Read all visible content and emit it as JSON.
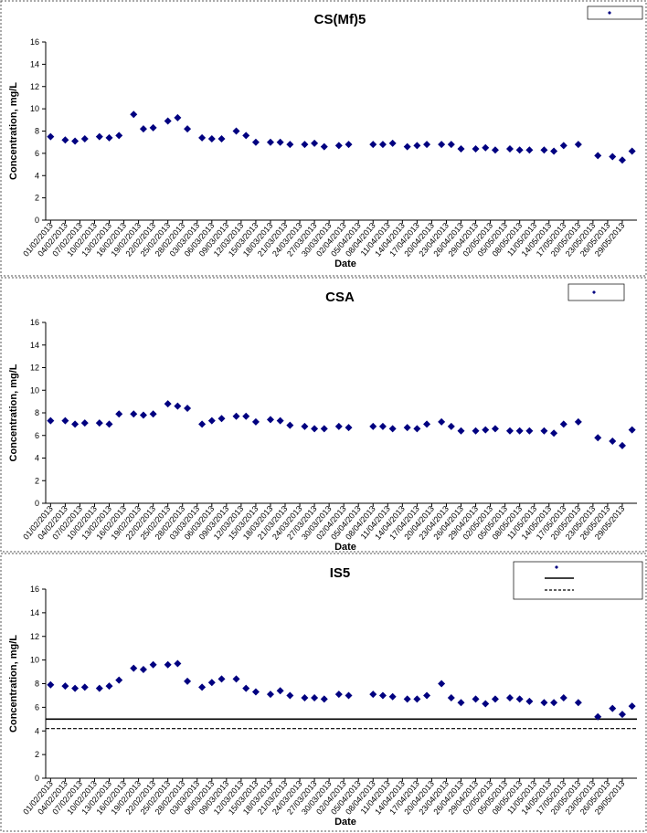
{
  "chart_data": [
    {
      "type": "scatter",
      "title": "CS(Mf)5",
      "x_label": "Date",
      "y_label": "Concentration, mg/L",
      "color": "#000080",
      "x": [
        "01/02/2013",
        "04/02/2013",
        "06/02/2013",
        "08/02/2013",
        "11/02/2013",
        "13/02/2013",
        "15/02/2013",
        "18/02/2013",
        "20/02/2013",
        "22/02/2013",
        "25/02/2013",
        "27/02/2013",
        "01/03/2013",
        "04/03/2013",
        "06/03/2013",
        "08/03/2013",
        "11/03/2013",
        "13/03/2013",
        "15/03/2013",
        "18/03/2013",
        "20/03/2013",
        "22/03/2013",
        "25/03/2013",
        "27/03/2013",
        "29/03/2013",
        "01/04/2013",
        "03/04/2013",
        "08/04/2013",
        "10/04/2013",
        "12/04/2013",
        "15/04/2013",
        "17/04/2013",
        "19/04/2013",
        "22/04/2013",
        "24/04/2013",
        "26/04/2013",
        "29/04/2013",
        "01/05/2013",
        "03/05/2013",
        "06/05/2013",
        "08/05/2013",
        "10/05/2013",
        "13/05/2013",
        "15/05/2013",
        "17/05/2013",
        "20/05/2013",
        "24/05/2013",
        "27/05/2013",
        "29/05/2013",
        "31/05/2013"
      ],
      "values": [
        7.5,
        7.2,
        7.1,
        7.3,
        7.5,
        7.4,
        7.6,
        9.5,
        8.2,
        8.3,
        8.9,
        9.2,
        8.2,
        7.4,
        7.3,
        7.3,
        8.0,
        7.6,
        7.0,
        7.0,
        7.0,
        6.8,
        6.8,
        6.9,
        6.6,
        6.7,
        6.8,
        6.8,
        6.8,
        6.9,
        6.6,
        6.7,
        6.8,
        6.8,
        6.8,
        6.4,
        6.4,
        6.5,
        6.3,
        6.4,
        6.3,
        6.3,
        6.3,
        6.2,
        6.7,
        6.8,
        5.8,
        5.7,
        5.4,
        6.2
      ],
      "xlim": [
        "31/01/2013",
        "01/06/2013"
      ],
      "xticks": [
        "01/02/2013",
        "04/02/2013",
        "07/02/2013",
        "10/02/2013",
        "13/02/2013",
        "16/02/2013",
        "19/02/2013",
        "22/02/2013",
        "25/02/2013",
        "28/02/2013",
        "03/03/2013",
        "06/03/2013",
        "09/03/2013",
        "12/03/2013",
        "15/03/2013",
        "18/03/2013",
        "21/03/2013",
        "24/03/2013",
        "27/03/2013",
        "30/03/2013",
        "02/04/2013",
        "05/04/2013",
        "08/04/2013",
        "11/04/2013",
        "14/04/2013",
        "17/04/2013",
        "20/04/2013",
        "23/04/2013",
        "26/04/2013",
        "29/04/2013",
        "02/05/2013",
        "05/05/2013",
        "08/05/2013",
        "11/05/2013",
        "14/05/2013",
        "17/05/2013",
        "20/05/2013",
        "23/05/2013",
        "26/05/2013",
        "29/05/2013"
      ],
      "ylim": [
        0,
        16
      ],
      "yticks": [
        0,
        2,
        4,
        6,
        8,
        10,
        12,
        14,
        16
      ]
    },
    {
      "type": "scatter",
      "title": "CSA",
      "x_label": "Date",
      "y_label": "Concentration, mg/L",
      "color": "#000080",
      "x": [
        "01/02/2013",
        "04/02/2013",
        "06/02/2013",
        "08/02/2013",
        "11/02/2013",
        "13/02/2013",
        "15/02/2013",
        "18/02/2013",
        "20/02/2013",
        "22/02/2013",
        "25/02/2013",
        "27/02/2013",
        "01/03/2013",
        "04/03/2013",
        "06/03/2013",
        "08/03/2013",
        "11/03/2013",
        "13/03/2013",
        "15/03/2013",
        "18/03/2013",
        "20/03/2013",
        "22/03/2013",
        "25/03/2013",
        "27/03/2013",
        "29/03/2013",
        "01/04/2013",
        "03/04/2013",
        "08/04/2013",
        "10/04/2013",
        "12/04/2013",
        "15/04/2013",
        "17/04/2013",
        "19/04/2013",
        "22/04/2013",
        "24/04/2013",
        "26/04/2013",
        "29/04/2013",
        "01/05/2013",
        "03/05/2013",
        "06/05/2013",
        "08/05/2013",
        "10/05/2013",
        "13/05/2013",
        "15/05/2013",
        "17/05/2013",
        "20/05/2013",
        "24/05/2013",
        "27/05/2013",
        "29/05/2013",
        "31/05/2013"
      ],
      "values": [
        7.3,
        7.3,
        7.0,
        7.1,
        7.1,
        7.0,
        7.9,
        7.9,
        7.8,
        7.9,
        8.8,
        8.6,
        8.4,
        7.0,
        7.3,
        7.5,
        7.7,
        7.7,
        7.2,
        7.4,
        7.3,
        6.9,
        6.8,
        6.6,
        6.6,
        6.8,
        6.7,
        6.8,
        6.8,
        6.6,
        6.7,
        6.6,
        7.0,
        7.2,
        6.8,
        6.4,
        6.4,
        6.5,
        6.6,
        6.4,
        6.4,
        6.4,
        6.4,
        6.2,
        7.0,
        7.2,
        5.8,
        5.5,
        5.1,
        6.5
      ],
      "xlim": [
        "31/01/2013",
        "01/06/2013"
      ],
      "xticks": [
        "01/02/2013",
        "04/02/2013",
        "07/02/2013",
        "10/02/2013",
        "13/02/2013",
        "16/02/2013",
        "19/02/2013",
        "22/02/2013",
        "25/02/2013",
        "28/02/2013",
        "03/03/2013",
        "06/03/2013",
        "09/03/2013",
        "12/03/2013",
        "15/03/2013",
        "18/03/2013",
        "21/03/2013",
        "24/03/2013",
        "27/03/2013",
        "30/03/2013",
        "02/04/2013",
        "05/04/2013",
        "08/04/2013",
        "11/04/2013",
        "14/04/2013",
        "17/04/2013",
        "20/04/2013",
        "23/04/2013",
        "26/04/2013",
        "29/04/2013",
        "02/05/2013",
        "05/05/2013",
        "08/05/2013",
        "11/05/2013",
        "14/05/2013",
        "17/05/2013",
        "20/05/2013",
        "23/05/2013",
        "26/05/2013",
        "29/05/2013"
      ],
      "ylim": [
        0,
        16
      ],
      "yticks": [
        0,
        2,
        4,
        6,
        8,
        10,
        12,
        14,
        16
      ]
    },
    {
      "type": "scatter",
      "title": "IS5",
      "x_label": "Date",
      "y_label": "Concentration, mg/L",
      "color": "#000080",
      "x": [
        "01/02/2013",
        "04/02/2013",
        "06/02/2013",
        "08/02/2013",
        "11/02/2013",
        "13/02/2013",
        "15/02/2013",
        "18/02/2013",
        "20/02/2013",
        "22/02/2013",
        "25/02/2013",
        "27/02/2013",
        "01/03/2013",
        "04/03/2013",
        "06/03/2013",
        "08/03/2013",
        "11/03/2013",
        "13/03/2013",
        "15/03/2013",
        "18/03/2013",
        "20/03/2013",
        "22/03/2013",
        "25/03/2013",
        "27/03/2013",
        "29/03/2013",
        "01/04/2013",
        "03/04/2013",
        "08/04/2013",
        "10/04/2013",
        "12/04/2013",
        "15/04/2013",
        "17/04/2013",
        "19/04/2013",
        "22/04/2013",
        "24/04/2013",
        "26/04/2013",
        "29/04/2013",
        "01/05/2013",
        "03/05/2013",
        "06/05/2013",
        "08/05/2013",
        "10/05/2013",
        "13/05/2013",
        "15/05/2013",
        "17/05/2013",
        "20/05/2013",
        "24/05/2013",
        "27/05/2013",
        "29/05/2013",
        "31/05/2013"
      ],
      "values": [
        7.9,
        7.8,
        7.6,
        7.7,
        7.6,
        7.8,
        8.3,
        9.3,
        9.2,
        9.6,
        9.6,
        9.7,
        8.2,
        7.7,
        8.1,
        8.4,
        8.4,
        7.6,
        7.3,
        7.1,
        7.4,
        7.0,
        6.8,
        6.8,
        6.7,
        7.1,
        7.0,
        7.1,
        7.0,
        6.9,
        6.7,
        6.7,
        7.0,
        8.0,
        6.8,
        6.4,
        6.7,
        6.3,
        6.7,
        6.8,
        6.7,
        6.5,
        6.4,
        6.4,
        6.8,
        6.4,
        5.2,
        5.9,
        5.4,
        6.1
      ],
      "xlim": [
        "31/01/2013",
        "01/06/2013"
      ],
      "xticks": [
        "01/02/2013",
        "04/02/2013",
        "07/02/2013",
        "10/02/2013",
        "13/02/2013",
        "16/02/2013",
        "19/02/2013",
        "22/02/2013",
        "25/02/2013",
        "28/02/2013",
        "03/03/2013",
        "06/03/2013",
        "09/03/2013",
        "12/03/2013",
        "15/03/2013",
        "18/03/2013",
        "21/03/2013",
        "24/03/2013",
        "27/03/2013",
        "30/03/2013",
        "02/04/2013",
        "05/04/2013",
        "08/04/2013",
        "11/04/2013",
        "14/04/2013",
        "17/04/2013",
        "20/04/2013",
        "23/04/2013",
        "26/04/2013",
        "29/04/2013",
        "02/05/2013",
        "05/05/2013",
        "08/05/2013",
        "11/05/2013",
        "14/05/2013",
        "17/05/2013",
        "20/05/2013",
        "23/05/2013",
        "26/05/2013",
        "29/05/2013"
      ],
      "ylim": [
        0,
        16
      ],
      "yticks": [
        0,
        2,
        4,
        6,
        8,
        10,
        12,
        14,
        16
      ],
      "reference_lines": [
        {
          "value": 5,
          "dashed": false
        },
        {
          "value": 4.2,
          "dashed": true
        }
      ]
    }
  ]
}
